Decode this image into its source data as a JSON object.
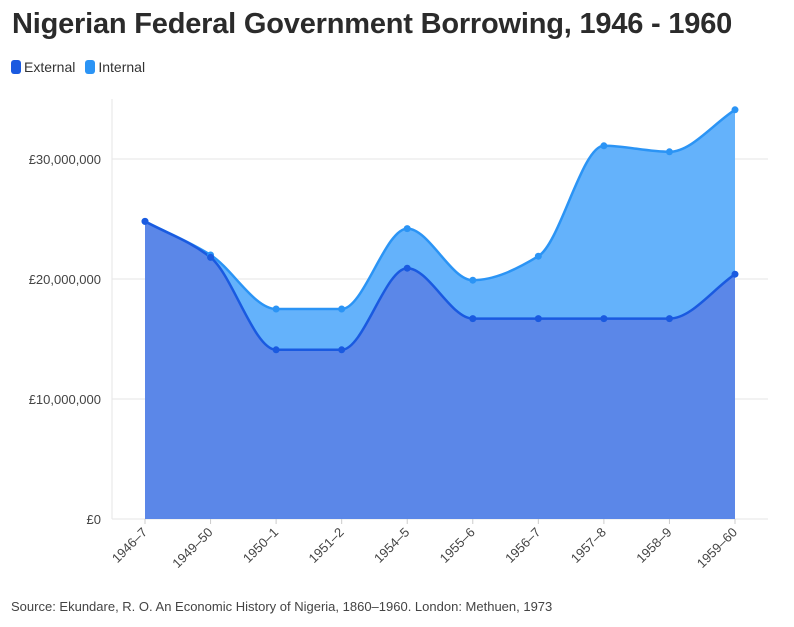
{
  "title": "Nigerian Federal Government Borrowing, 1946 - 1960",
  "source": "Source: Ekundare, R. O. An Economic History of Nigeria, 1860–1960. London: Methuen, 1973",
  "legend": [
    {
      "label": "External",
      "color": "#1a5ae0"
    },
    {
      "label": "Internal",
      "color": "#2b94f5"
    }
  ],
  "chart_data": {
    "type": "area",
    "stacked": true,
    "categories": [
      "1946–7",
      "1949–50",
      "1950–1",
      "1951–2",
      "1954–5",
      "1955–6",
      "1956–7",
      "1957–8",
      "1958–9",
      "1959–60"
    ],
    "series": [
      {
        "name": "External",
        "color": "#1a5ae0",
        "fill": "#5b87e8",
        "values": [
          24800000,
          21800000,
          14100000,
          14100000,
          20900000,
          16700000,
          16700000,
          16700000,
          16700000,
          20400000
        ]
      },
      {
        "name": "Internal",
        "color": "#2b94f5",
        "fill": "#64b2fb",
        "values": [
          0,
          200000,
          3400000,
          3400000,
          3300000,
          3200000,
          5200000,
          14400000,
          13900000,
          13700000
        ]
      }
    ],
    "y_ticks": [
      {
        "value": 0,
        "label": "£0"
      },
      {
        "value": 10000000,
        "label": "£10,000,000"
      },
      {
        "value": 20000000,
        "label": "£20,000,000"
      },
      {
        "value": 30000000,
        "label": "£30,000,000"
      }
    ],
    "ylim": [
      0,
      35000000
    ],
    "grid": true,
    "legend_position": "top-left"
  }
}
